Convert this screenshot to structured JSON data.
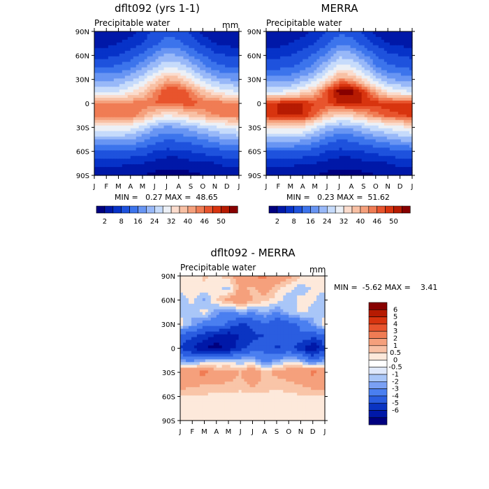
{
  "palette": {
    "seq": [
      "#00007f",
      "#0018a8",
      "#0732c8",
      "#1e52dd",
      "#3c74ec",
      "#6895f3",
      "#98b8f8",
      "#c6dbfb",
      "#ecf0f6",
      "#fbdccd",
      "#f8c0a4",
      "#f5a07c",
      "#f07c54",
      "#e8542d",
      "#d8340f",
      "#b61b02",
      "#870000"
    ],
    "diff": [
      "#00007f",
      "#0018a8",
      "#0732c8",
      "#1e52dd",
      "#3c74ec",
      "#6895f3",
      "#98b8f8",
      "#c6dbfb",
      "#ecf0f6",
      "#fbe2cf",
      "#f8c0a4",
      "#f5a07c",
      "#f07c54",
      "#e8542d",
      "#d8340f",
      "#b61b02",
      "#870000"
    ]
  },
  "chart_data": [
    {
      "type": "heatmap",
      "title": "dflt092 (yrs 1-1)",
      "subtitle": "Precipitable water",
      "units": "mm",
      "x_categories": [
        "J",
        "F",
        "M",
        "A",
        "M",
        "J",
        "J",
        "A",
        "S",
        "O",
        "N",
        "D",
        "J"
      ],
      "y_ticks": [
        "90N",
        "60N",
        "30N",
        "0",
        "30S",
        "60S",
        "90S"
      ],
      "ylim": [
        -90,
        90
      ],
      "stats": "MIN =   0.27 MAX =  48.65",
      "colorbar_labels": [
        "2",
        "8",
        "16",
        "24",
        "32",
        "40",
        "46",
        "50"
      ],
      "latitudes": [
        90,
        75,
        60,
        45,
        30,
        15,
        0,
        -15,
        -30,
        -45,
        -60,
        -75,
        -90
      ],
      "z": [
        [
          2,
          2,
          3,
          4,
          6,
          9,
          11,
          10,
          7,
          4,
          3,
          2,
          2
        ],
        [
          4,
          4,
          5,
          6,
          8,
          11,
          14,
          13,
          10,
          7,
          5,
          4,
          4
        ],
        [
          7,
          7,
          8,
          10,
          13,
          17,
          21,
          20,
          16,
          12,
          9,
          8,
          7
        ],
        [
          12,
          12,
          13,
          15,
          19,
          24,
          28,
          27,
          23,
          18,
          14,
          12,
          12
        ],
        [
          19,
          19,
          20,
          23,
          27,
          33,
          38,
          37,
          32,
          26,
          22,
          20,
          19
        ],
        [
          28,
          27,
          28,
          31,
          35,
          40,
          44,
          44,
          41,
          36,
          32,
          29,
          28
        ],
        [
          40,
          40,
          41,
          41,
          41,
          42,
          43,
          43,
          43,
          42,
          42,
          41,
          40
        ],
        [
          41,
          42,
          42,
          42,
          39,
          35,
          32,
          33,
          36,
          38,
          40,
          41,
          41
        ],
        [
          30,
          31,
          31,
          30,
          26,
          21,
          19,
          20,
          22,
          25,
          27,
          29,
          30
        ],
        [
          21,
          21,
          21,
          20,
          17,
          14,
          12,
          13,
          14,
          16,
          18,
          20,
          21
        ],
        [
          12,
          12,
          12,
          11,
          10,
          8,
          7,
          7,
          8,
          9,
          10,
          11,
          12
        ],
        [
          6,
          6,
          6,
          5,
          5,
          4,
          3,
          3,
          4,
          4,
          5,
          6,
          6
        ],
        [
          2,
          2,
          2,
          2,
          2,
          1,
          1,
          1,
          1,
          2,
          2,
          2,
          2
        ]
      ]
    },
    {
      "type": "heatmap",
      "title": "MERRA",
      "subtitle": "Precipitable water",
      "x_categories": [
        "J",
        "F",
        "M",
        "A",
        "M",
        "J",
        "J",
        "A",
        "S",
        "O",
        "N",
        "D",
        "J"
      ],
      "y_ticks": [
        "90N",
        "60N",
        "30N",
        "0",
        "30S",
        "60S",
        "90S"
      ],
      "ylim": [
        -90,
        90
      ],
      "stats": "MIN =   0.23 MAX =  51.62",
      "colorbar_labels": [
        "2",
        "8",
        "16",
        "24",
        "32",
        "40",
        "46",
        "50"
      ],
      "latitudes": [
        90,
        75,
        60,
        45,
        30,
        15,
        0,
        -15,
        -30,
        -45,
        -60,
        -75,
        -90
      ],
      "z": [
        [
          2,
          2,
          3,
          4,
          6,
          8,
          11,
          10,
          7,
          4,
          3,
          2,
          2
        ],
        [
          4,
          4,
          5,
          6,
          8,
          11,
          15,
          14,
          10,
          7,
          5,
          4,
          4
        ],
        [
          7,
          7,
          8,
          10,
          13,
          17,
          23,
          22,
          17,
          12,
          9,
          8,
          7
        ],
        [
          11,
          11,
          12,
          14,
          18,
          24,
          30,
          29,
          24,
          17,
          13,
          12,
          11
        ],
        [
          18,
          18,
          19,
          22,
          26,
          33,
          40,
          39,
          33,
          26,
          21,
          19,
          18
        ],
        [
          28,
          28,
          29,
          33,
          37,
          44,
          49,
          49,
          45,
          38,
          32,
          29,
          28
        ],
        [
          45,
          46,
          47,
          46,
          44,
          44,
          46,
          46,
          46,
          45,
          45,
          45,
          45
        ],
        [
          45,
          46,
          46,
          46,
          42,
          37,
          34,
          35,
          38,
          41,
          43,
          44,
          45
        ],
        [
          33,
          34,
          34,
          33,
          28,
          23,
          20,
          21,
          24,
          27,
          29,
          31,
          33
        ],
        [
          22,
          22,
          22,
          21,
          18,
          14,
          12,
          13,
          15,
          17,
          19,
          21,
          22
        ],
        [
          12,
          12,
          12,
          11,
          10,
          8,
          7,
          7,
          8,
          9,
          10,
          11,
          12
        ],
        [
          6,
          6,
          6,
          5,
          5,
          4,
          3,
          3,
          4,
          4,
          5,
          6,
          6
        ],
        [
          2,
          2,
          2,
          2,
          2,
          1,
          1,
          1,
          1,
          2,
          2,
          2,
          2
        ]
      ]
    },
    {
      "type": "heatmap",
      "title": "dflt092 - MERRA",
      "subtitle": "Precipitable water",
      "units": "mm",
      "x_categories": [
        "J",
        "F",
        "M",
        "A",
        "M",
        "J",
        "J",
        "A",
        "S",
        "O",
        "N",
        "D",
        "J"
      ],
      "y_ticks": [
        "90N",
        "60N",
        "30N",
        "0",
        "30S",
        "60S",
        "90S"
      ],
      "ylim": [
        -90,
        90
      ],
      "stats": "MIN =  -5.62 MAX =    3.41",
      "colorbar_labels": [
        "6",
        "5",
        "4",
        "3",
        "2",
        "1",
        "0.5",
        "0",
        "-0.5",
        "-1",
        "-2",
        "-3",
        "-4",
        "-5",
        "-6"
      ],
      "latitudes": [
        90,
        75,
        60,
        45,
        30,
        15,
        0,
        -15,
        -30,
        -45,
        -60,
        -75,
        -90
      ],
      "z": [
        [
          0.2,
          0.3,
          0.6,
          0.4,
          0.8,
          1.5,
          2.0,
          2.2,
          1.8,
          1.2,
          0.6,
          0.3,
          0.2
        ],
        [
          0.1,
          0.2,
          0.4,
          0.1,
          -0.2,
          1.2,
          0.8,
          1.5,
          0.6,
          0.2,
          -0.3,
          0.1,
          0.1
        ],
        [
          -0.3,
          0.2,
          -0.6,
          0.5,
          1.2,
          1.8,
          1.0,
          0.6,
          0.3,
          -0.4,
          0.2,
          0.1,
          -0.3
        ],
        [
          -0.2,
          -0.4,
          0.3,
          -0.8,
          -1.2,
          -0.6,
          -0.9,
          -0.4,
          -1.0,
          -0.3,
          0.2,
          -0.2,
          -0.2
        ],
        [
          0.4,
          -0.6,
          -1.5,
          -1.4,
          -2.2,
          -3.2,
          -2.8,
          -2.0,
          -3.0,
          -2.4,
          -1.8,
          -0.8,
          0.4
        ],
        [
          -2.5,
          -2.8,
          -3.5,
          -4.2,
          -4.8,
          -3.8,
          -3.2,
          -3.0,
          -2.8,
          -2.4,
          -2.2,
          -2.6,
          -2.5
        ],
        [
          -3.0,
          -4.0,
          -5.0,
          -5.6,
          -4.6,
          -3.5,
          -2.6,
          -2.3,
          -3.1,
          -2.8,
          -3.6,
          -5.2,
          -3.0
        ],
        [
          -1.0,
          -1.2,
          -0.6,
          -0.3,
          -0.4,
          -0.5,
          -0.2,
          -1.5,
          -0.8,
          -0.2,
          -0.6,
          -1.8,
          -1.0
        ],
        [
          2.0,
          1.8,
          2.4,
          1.2,
          1.5,
          1.0,
          1.8,
          0.8,
          1.2,
          1.6,
          1.8,
          2.2,
          2.0
        ],
        [
          1.4,
          1.2,
          1.0,
          1.1,
          0.9,
          0.7,
          1.2,
          0.8,
          0.6,
          0.8,
          1.0,
          1.3,
          1.4
        ],
        [
          0.5,
          0.4,
          0.4,
          0.3,
          0.4,
          0.3,
          0.3,
          0.4,
          0.3,
          0.4,
          0.4,
          0.5,
          0.5
        ],
        [
          0.3,
          0.3,
          0.2,
          0.2,
          0.2,
          0.3,
          0.2,
          0.2,
          0.3,
          0.2,
          0.3,
          0.3,
          0.3
        ],
        [
          0.1,
          0.1,
          0.1,
          0.1,
          0.1,
          0.1,
          0.1,
          0.1,
          0.1,
          0.1,
          0.1,
          0.1,
          0.1
        ]
      ]
    }
  ]
}
